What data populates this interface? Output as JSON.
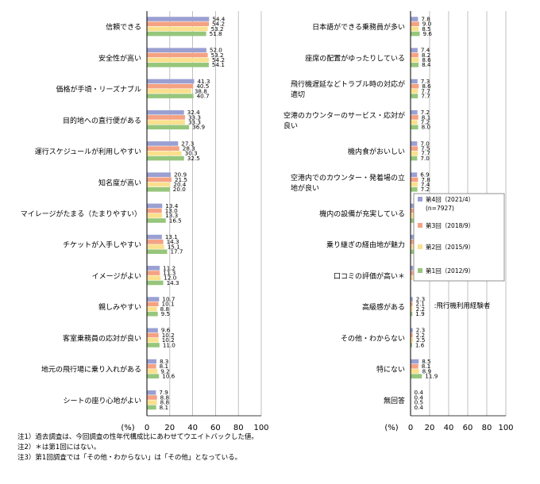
{
  "chart_data": [
    {
      "type": "bar",
      "orientation": "horizontal",
      "xlim": [
        0,
        100
      ],
      "xticks": [
        "0",
        "20",
        "40",
        "60",
        "80",
        "100"
      ],
      "unit_label": "(%)",
      "grid": true,
      "categories": [
        "信頼できる",
        "安全性が高い",
        "価格が手頃・リーズナブル",
        "目的地への直行便がある",
        "運行スケジュールが利用しやすい",
        "知名度が高い",
        "マイレージがたまる（たまりやすい）",
        "チケットが入手しやすい",
        "イメージがよい",
        "親しみやすい",
        "客室乗務員の応対が良い",
        "地元の飛行場に乗り入れがある",
        "シートの座り心地がよい"
      ],
      "series": [
        {
          "name": "第4回（2021/4）(n=7927)",
          "values": [
            54.4,
            52.0,
            41.3,
            32.4,
            27.3,
            20.9,
            13.4,
            13.1,
            11.2,
            10.7,
            9.6,
            8.3,
            7.9
          ]
        },
        {
          "name": "第3回（2018/9）",
          "values": [
            54.2,
            53.2,
            40.5,
            33.3,
            28.3,
            21.5,
            13.0,
            14.3,
            11.3,
            10.1,
            10.2,
            8.1,
            8.8
          ]
        },
        {
          "name": "第2回（2015/9）",
          "values": [
            53.2,
            54.2,
            38.8,
            33.3,
            30.3,
            20.4,
            13.3,
            15.1,
            12.0,
            8.8,
            10.2,
            9.2,
            8.8
          ]
        },
        {
          "name": "第1回（2012/9）",
          "values": [
            51.8,
            54.1,
            40.7,
            36.9,
            32.5,
            20.0,
            16.5,
            17.7,
            14.3,
            9.5,
            11.0,
            10.6,
            8.1
          ]
        }
      ]
    },
    {
      "type": "bar",
      "orientation": "horizontal",
      "xlim": [
        0,
        100
      ],
      "xticks": [
        "0",
        "20",
        "40",
        "60",
        "80",
        "100"
      ],
      "unit_label": "(%)",
      "grid": true,
      "legend_position": "right",
      "categories": [
        "日本語ができる乗務員が多い",
        "座席の配置がゆったりしている",
        "飛行機遅延などトラブル時の対応が適切",
        "空港のカウンターのサービス・応対が良い",
        "機内食がおいしい",
        "空港内でのカウンター・発着場の立地が良い",
        "機内の設備が充実している",
        "乗り継ぎの経由地が魅力",
        "口コミの評価が高い＊",
        "高級感がある",
        "その他・わからない",
        "特にない",
        "無回答"
      ],
      "category_lines": [
        [
          "日本語ができる乗務員が多い"
        ],
        [
          "座席の配置がゆったりしている"
        ],
        [
          "飛行機遅延などトラブル時の対応が",
          "適切"
        ],
        [
          "空港のカウンターのサービス・応対が",
          "良い"
        ],
        [
          "機内食がおいしい"
        ],
        [
          "空港内でのカウンター・発着場の立",
          "地が良い"
        ],
        [
          "機内の設備が充実している"
        ],
        [
          "乗り継ぎの経由地が魅力"
        ],
        [
          "口コミの評価が高い＊"
        ],
        [
          "高級感がある"
        ],
        [
          "その他・わからない"
        ],
        [
          "特にない"
        ],
        [
          "無回答"
        ]
      ],
      "series": [
        {
          "name": "第4回（2021/4）(n=7927)",
          "values": [
            7.8,
            7.4,
            7.3,
            7.2,
            7.0,
            6.9,
            5.9,
            4.2,
            2.7,
            2.3,
            2.3,
            8.5,
            0.4
          ]
        },
        {
          "name": "第3回（2018/9）",
          "values": [
            9.0,
            8.2,
            8.6,
            8.1,
            7.5,
            7.8,
            6.6,
            3.7,
            2.8,
            2.1,
            2.2,
            8.1,
            0.4
          ]
        },
        {
          "name": "第2回（2015/9）",
          "values": [
            8.5,
            8.6,
            7.7,
            7.2,
            7.7,
            7.4,
            5.9,
            3.2,
            2.4,
            2.2,
            2.5,
            8.9,
            0.5
          ]
        },
        {
          "name": "第1回（2012/9）",
          "values": [
            9.6,
            8.4,
            7.7,
            8.0,
            7.0,
            7.2,
            5.2,
            4.2,
            null,
            1.9,
            1.6,
            11.9,
            0.4
          ]
        }
      ],
      "annotation": ":飛行機利用経験者"
    }
  ],
  "legend": {
    "items": [
      {
        "label": "第4回（2021/4）",
        "sublabel": "(n=7927)",
        "color": "#9aa0d2"
      },
      {
        "label": "第3回（2018/9）",
        "sublabel": "",
        "color": "#f4a283"
      },
      {
        "label": "第2回（2015/9）",
        "sublabel": "",
        "color": "#fae08e"
      },
      {
        "label": "第1回（2012/9）",
        "sublabel": "",
        "color": "#96c67c"
      }
    ]
  },
  "colors": [
    "#9aa0d2",
    "#f4a283",
    "#fae08e",
    "#96c67c"
  ],
  "notes": [
    "注1）過去調査は、今回調査の性年代構成比にあわせてウエイトバックした値。",
    "注2）＊は第1回にはない。",
    "注3）第1回調査では「その他・わからない」は「その他」となっている。"
  ]
}
